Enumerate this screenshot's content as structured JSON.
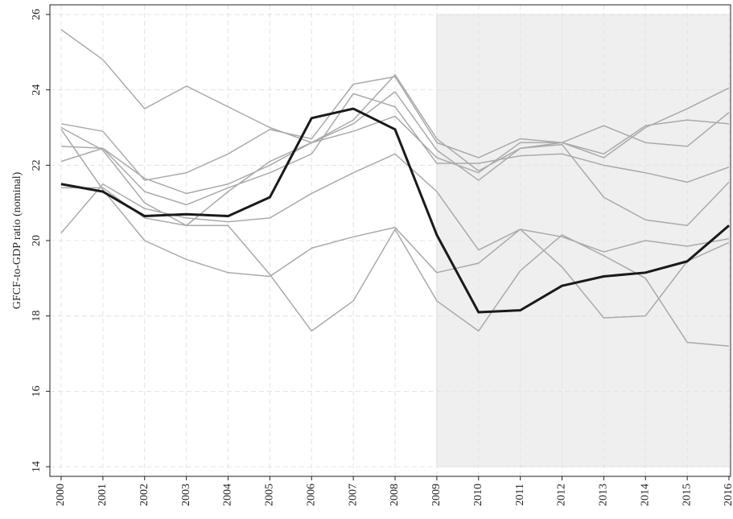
{
  "chart_data": {
    "type": "line",
    "y_label": "GFCF-to-GDP ratio (nominal)",
    "x": [
      2000,
      2001,
      2002,
      2003,
      2004,
      2005,
      2006,
      2007,
      2008,
      2009,
      2010,
      2011,
      2012,
      2013,
      2014,
      2015,
      2016
    ],
    "xlim": [
      2000,
      2016
    ],
    "xticks": [
      2000,
      2001,
      2002,
      2003,
      2004,
      2005,
      2006,
      2007,
      2008,
      2009,
      2010,
      2011,
      2012,
      2013,
      2014,
      2015,
      2016
    ],
    "ylim": [
      14,
      26
    ],
    "yticks": [
      14,
      16,
      18,
      20,
      22,
      24,
      26
    ],
    "grid": true,
    "shaded_region": {
      "x": [
        2009,
        2016
      ],
      "color": "#efefef"
    },
    "series": [
      {
        "color": "#aaaaaa",
        "values": [
          25.6,
          24.8,
          23.5,
          24.1,
          23.55,
          23.0,
          22.6,
          22.9,
          23.3,
          22.2,
          21.8,
          22.6,
          22.6,
          22.2,
          23.0,
          23.5,
          24.05
        ]
      },
      {
        "color": "#aaaaaa",
        "values": [
          23.1,
          22.9,
          21.6,
          21.8,
          22.3,
          22.95,
          22.7,
          24.15,
          24.35,
          22.6,
          22.2,
          22.7,
          22.6,
          23.05,
          22.6,
          22.5,
          23.4
        ]
      },
      {
        "color": "#aaaaaa",
        "values": [
          22.5,
          22.45,
          21.65,
          21.25,
          21.5,
          22.0,
          22.6,
          23.2,
          24.4,
          22.7,
          21.85,
          22.45,
          22.6,
          22.3,
          23.05,
          23.2,
          23.1
        ]
      },
      {
        "color": "#aaaaaa",
        "values": [
          22.1,
          22.45,
          21.3,
          20.95,
          21.4,
          21.8,
          22.3,
          23.9,
          23.55,
          22.05,
          22.05,
          22.25,
          22.3,
          22.0,
          21.8,
          21.55,
          21.95
        ]
      },
      {
        "color": "#aaaaaa",
        "values": [
          23.0,
          22.4,
          21.0,
          20.4,
          21.3,
          22.1,
          22.6,
          23.1,
          23.95,
          22.4,
          21.6,
          22.45,
          22.55,
          21.15,
          20.55,
          20.4,
          21.55
        ]
      },
      {
        "color": "#aaaaaa",
        "values": [
          20.2,
          21.5,
          20.85,
          20.6,
          20.5,
          20.6,
          21.25,
          21.8,
          22.3,
          21.3,
          19.75,
          20.3,
          20.1,
          19.7,
          20.0,
          19.85,
          20.05
        ]
      },
      {
        "color": "#aaaaaa",
        "values": [
          22.95,
          21.35,
          20.0,
          19.5,
          19.15,
          19.05,
          19.8,
          20.1,
          20.35,
          19.15,
          19.4,
          20.3,
          19.3,
          17.95,
          18.0,
          19.45,
          19.95
        ]
      },
      {
        "color": "#aaaaaa",
        "values": [
          21.4,
          21.4,
          20.6,
          20.4,
          20.4,
          19.1,
          17.6,
          18.4,
          20.3,
          18.4,
          17.6,
          19.2,
          20.15,
          19.6,
          19.0,
          17.3,
          17.2
        ]
      },
      {
        "color": "#1a1a1a",
        "width": 3,
        "values": [
          21.5,
          21.3,
          20.65,
          20.7,
          20.65,
          21.15,
          23.25,
          23.5,
          22.95,
          20.15,
          18.1,
          18.15,
          18.8,
          19.05,
          19.15,
          19.45,
          20.4
        ]
      }
    ]
  }
}
